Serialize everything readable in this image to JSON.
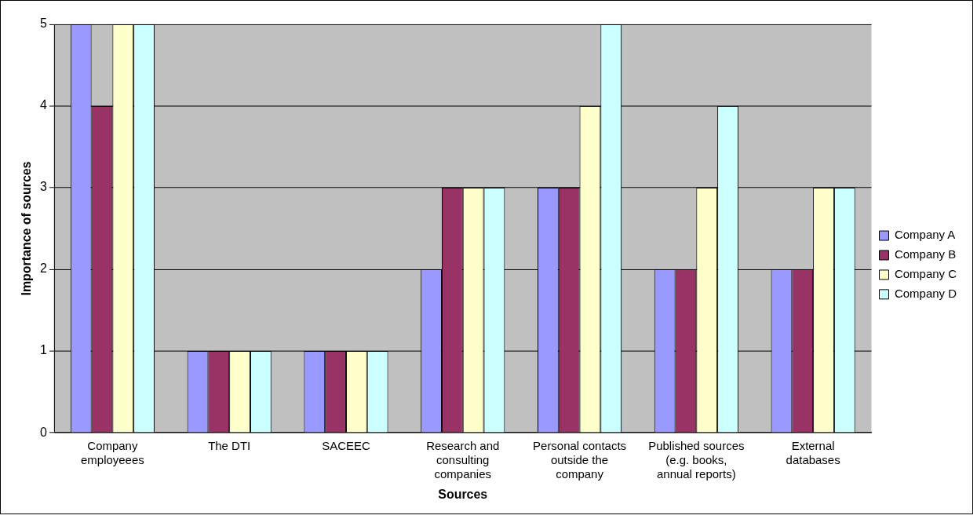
{
  "chart_data": {
    "type": "bar",
    "xlabel": "Sources",
    "ylabel": "Importance of sources",
    "categories": [
      "Company employeees",
      "The DTI",
      "SACEEC",
      "Research and consulting companies",
      "Personal contacts outside the company",
      "Published sources (e.g. books, annual reports)",
      "External databases"
    ],
    "series": [
      {
        "name": "Company A",
        "color": "#9999ff",
        "values": [
          5,
          1,
          1,
          2,
          3,
          2,
          2
        ]
      },
      {
        "name": "Company B",
        "color": "#993366",
        "values": [
          4,
          1,
          1,
          3,
          3,
          2,
          2
        ]
      },
      {
        "name": "Company C",
        "color": "#ffffcc",
        "values": [
          5,
          1,
          1,
          3,
          4,
          3,
          3
        ]
      },
      {
        "name": "Company D",
        "color": "#ccffff",
        "values": [
          5,
          1,
          1,
          3,
          5,
          4,
          3
        ]
      }
    ],
    "ylim": [
      0,
      5
    ],
    "yticks": [
      0,
      1,
      2,
      3,
      4,
      5
    ],
    "grid": "y",
    "legend": "right"
  }
}
